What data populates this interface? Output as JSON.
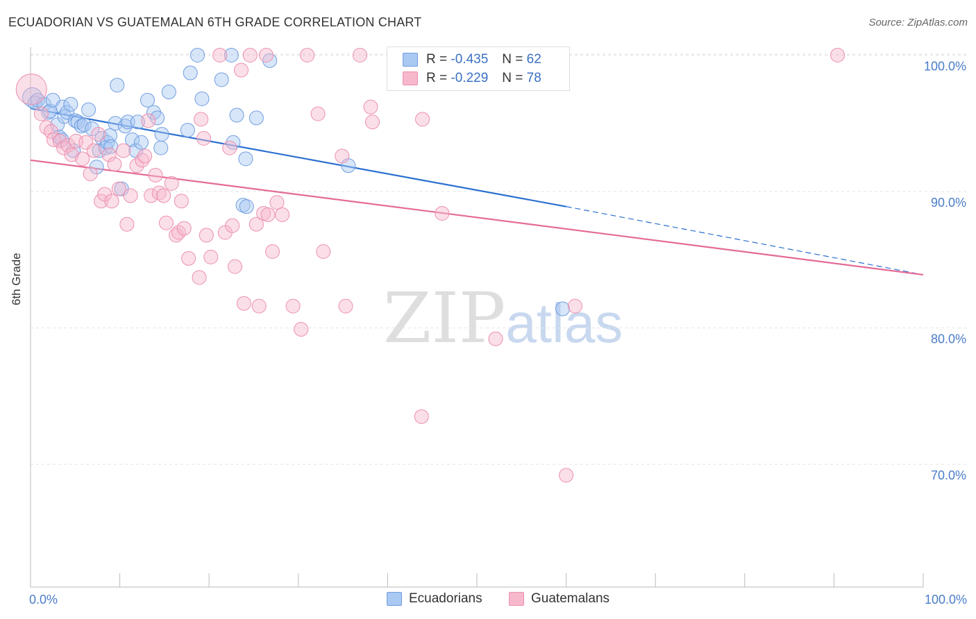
{
  "header": {
    "title": "ECUADORIAN VS GUATEMALAN 6TH GRADE CORRELATION CHART",
    "source": "Source: ZipAtlas.com"
  },
  "watermark": {
    "zip": "ZIP",
    "atlas": "atlas"
  },
  "legend_box": {
    "rows": [
      {
        "r_label": "R =",
        "r_value": "-0.435",
        "n_label": "N =",
        "n_value": "62",
        "color": "#a9c8f2"
      },
      {
        "r_label": "R =",
        "r_value": "-0.229",
        "n_label": "N =",
        "n_value": "78",
        "color": "#f7b8cc"
      }
    ]
  },
  "bottom_legend": [
    {
      "label": "Ecuadorians",
      "color": "#a9c8f2"
    },
    {
      "label": "Guatemalans",
      "color": "#f7b8cc"
    }
  ],
  "chart_data": {
    "type": "scatter",
    "title": "ECUADORIAN VS GUATEMALAN 6TH GRADE CORRELATION CHART",
    "xlabel": "",
    "ylabel": "6th Grade",
    "xlim": [
      0,
      100
    ],
    "ylim": [
      61.0,
      101.5
    ],
    "x_tick_labels": [
      "0.0%",
      "100.0%"
    ],
    "y_ticks": [
      {
        "value": 100,
        "label": "100.0%"
      },
      {
        "value": 90,
        "label": "90.0%"
      },
      {
        "value": 80,
        "label": "80.0%"
      },
      {
        "value": 70,
        "label": "70.0%"
      }
    ],
    "grid": true,
    "series": [
      {
        "name": "Ecuadorians",
        "color": "#7aa7e6",
        "trend_color": "#2a6fd0",
        "trend": {
          "x0": 0,
          "y0": 96.1,
          "x1": 60,
          "y1": 88.9,
          "dashed_to_x": 100,
          "dashed_to_y": 83.9
        },
        "points": [
          [
            0.2,
            96.9
          ],
          [
            0.5,
            96.5
          ],
          [
            0.8,
            96.7
          ],
          [
            1.5,
            96.4
          ],
          [
            2.0,
            95.8
          ],
          [
            2.2,
            95.9
          ],
          [
            2.5,
            96.7
          ],
          [
            3.0,
            94.9
          ],
          [
            3.2,
            94.0
          ],
          [
            3.5,
            93.8
          ],
          [
            3.6,
            96.2
          ],
          [
            3.8,
            95.5
          ],
          [
            4.1,
            95.8
          ],
          [
            4.5,
            96.4
          ],
          [
            4.8,
            93.0
          ],
          [
            5.0,
            95.2
          ],
          [
            5.3,
            95.1
          ],
          [
            5.7,
            94.8
          ],
          [
            6.0,
            94.9
          ],
          [
            6.5,
            96.0
          ],
          [
            6.9,
            94.6
          ],
          [
            7.4,
            91.8
          ],
          [
            7.7,
            93.0
          ],
          [
            8.0,
            93.9
          ],
          [
            8.4,
            93.2
          ],
          [
            8.6,
            93.6
          ],
          [
            8.9,
            94.1
          ],
          [
            9.0,
            93.3
          ],
          [
            9.5,
            95.0
          ],
          [
            9.7,
            97.8
          ],
          [
            10.2,
            90.2
          ],
          [
            10.6,
            94.8
          ],
          [
            10.9,
            95.1
          ],
          [
            11.4,
            93.8
          ],
          [
            11.8,
            93.0
          ],
          [
            12.0,
            95.1
          ],
          [
            12.4,
            93.6
          ],
          [
            13.1,
            96.7
          ],
          [
            13.8,
            95.8
          ],
          [
            14.2,
            95.4
          ],
          [
            14.7,
            94.2
          ],
          [
            14.6,
            93.2
          ],
          [
            15.5,
            97.3
          ],
          [
            17.6,
            94.5
          ],
          [
            17.9,
            98.7
          ],
          [
            18.7,
            100.0
          ],
          [
            19.2,
            96.8
          ],
          [
            21.4,
            98.2
          ],
          [
            22.5,
            100.0
          ],
          [
            22.7,
            93.6
          ],
          [
            23.1,
            95.6
          ],
          [
            23.8,
            89.0
          ],
          [
            24.2,
            88.9
          ],
          [
            24.1,
            92.4
          ],
          [
            25.3,
            95.4
          ],
          [
            26.8,
            99.6
          ],
          [
            35.6,
            91.9
          ],
          [
            59.6,
            81.4
          ]
        ],
        "sizes": {
          "0.2": 22
        }
      },
      {
        "name": "Guatemalans",
        "color": "#f0a0b8",
        "trend_color": "#e46a96",
        "trend": {
          "x0": 0,
          "y0": 92.3,
          "x1": 100,
          "y1": 83.9
        },
        "points": [
          [
            0.1,
            97.5
          ],
          [
            1.2,
            95.7
          ],
          [
            1.8,
            94.7
          ],
          [
            2.3,
            94.4
          ],
          [
            2.6,
            93.8
          ],
          [
            3.3,
            93.7
          ],
          [
            3.7,
            93.2
          ],
          [
            4.2,
            93.4
          ],
          [
            4.6,
            92.7
          ],
          [
            5.1,
            93.7
          ],
          [
            5.8,
            92.4
          ],
          [
            6.2,
            93.6
          ],
          [
            6.7,
            91.3
          ],
          [
            7.1,
            93.0
          ],
          [
            7.6,
            94.2
          ],
          [
            7.9,
            89.3
          ],
          [
            8.3,
            89.8
          ],
          [
            8.8,
            92.7
          ],
          [
            9.1,
            89.3
          ],
          [
            9.4,
            92.0
          ],
          [
            9.9,
            90.2
          ],
          [
            10.4,
            93.0
          ],
          [
            10.8,
            87.6
          ],
          [
            11.2,
            89.7
          ],
          [
            11.9,
            91.9
          ],
          [
            12.5,
            92.3
          ],
          [
            12.8,
            92.6
          ],
          [
            13.2,
            95.2
          ],
          [
            13.5,
            89.7
          ],
          [
            14.0,
            91.2
          ],
          [
            14.4,
            89.9
          ],
          [
            14.9,
            89.7
          ],
          [
            15.2,
            87.7
          ],
          [
            15.8,
            90.6
          ],
          [
            16.3,
            86.8
          ],
          [
            16.6,
            87.0
          ],
          [
            16.9,
            89.3
          ],
          [
            17.2,
            87.3
          ],
          [
            17.7,
            85.1
          ],
          [
            18.9,
            83.7
          ],
          [
            19.1,
            95.3
          ],
          [
            19.4,
            93.9
          ],
          [
            19.7,
            86.8
          ],
          [
            20.2,
            85.2
          ],
          [
            21.2,
            100.0
          ],
          [
            21.8,
            87.0
          ],
          [
            22.3,
            93.2
          ],
          [
            22.6,
            87.5
          ],
          [
            22.9,
            84.5
          ],
          [
            23.6,
            98.9
          ],
          [
            23.9,
            81.8
          ],
          [
            24.6,
            100.0
          ],
          [
            25.3,
            87.6
          ],
          [
            25.6,
            81.6
          ],
          [
            26.1,
            88.4
          ],
          [
            26.4,
            100.0
          ],
          [
            26.6,
            88.3
          ],
          [
            27.1,
            85.6
          ],
          [
            27.6,
            89.2
          ],
          [
            28.2,
            88.3
          ],
          [
            29.4,
            81.6
          ],
          [
            30.3,
            79.9
          ],
          [
            31.0,
            100.0
          ],
          [
            32.8,
            85.6
          ],
          [
            32.2,
            95.7
          ],
          [
            34.9,
            92.6
          ],
          [
            35.3,
            81.6
          ],
          [
            36.9,
            100.0
          ],
          [
            38.1,
            96.2
          ],
          [
            38.3,
            95.1
          ],
          [
            43.8,
            73.5
          ],
          [
            43.9,
            95.3
          ],
          [
            46.1,
            88.4
          ],
          [
            52.1,
            79.2
          ],
          [
            60.0,
            69.2
          ],
          [
            61.0,
            81.6
          ],
          [
            90.4,
            100.0
          ]
        ]
      }
    ]
  }
}
